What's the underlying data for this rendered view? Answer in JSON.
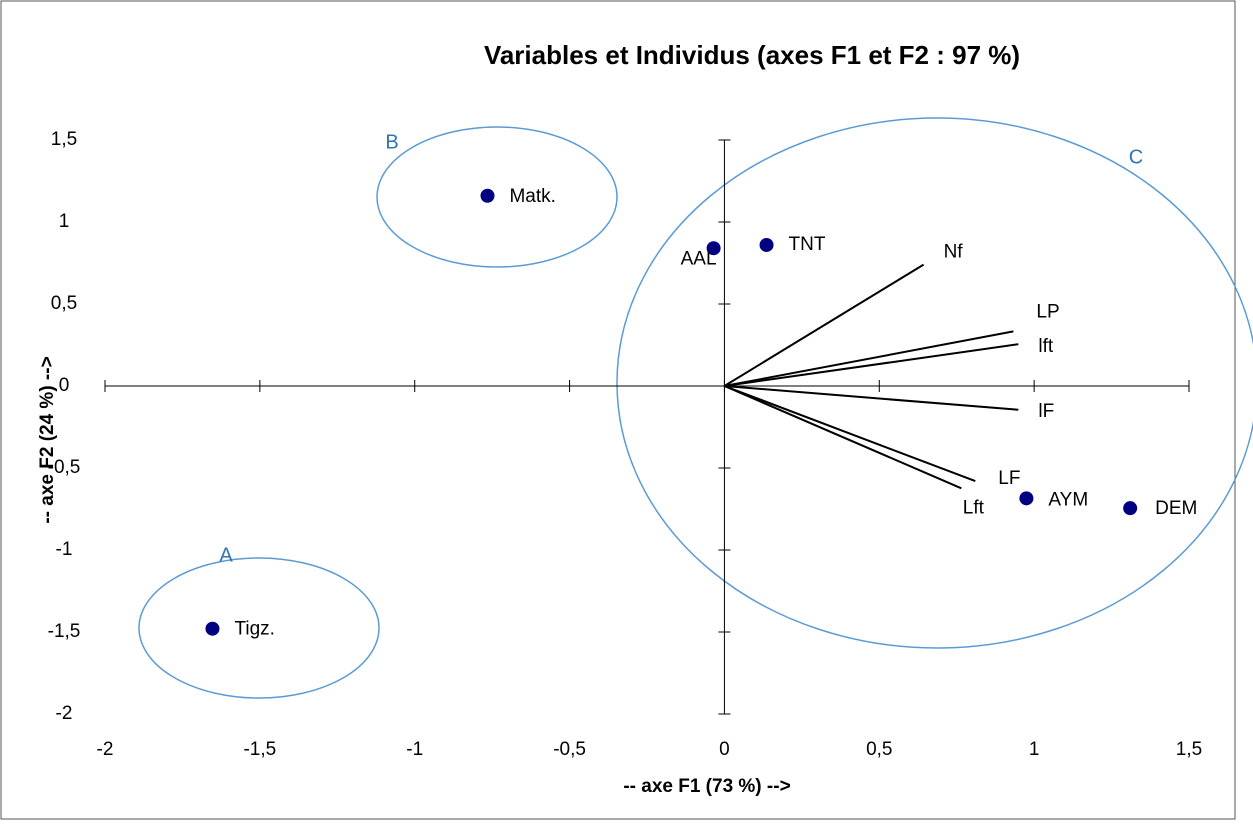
{
  "chart_data": {
    "type": "scatter",
    "title": "Variables et Individus (axes F1 et F2 : 97 %)",
    "x_label": "-- axe F1 (73 %) -->",
    "y_label": "-- axe F2 (24 %) -->",
    "xlim": [
      -2,
      1.5
    ],
    "ylim": [
      -2,
      1.5
    ],
    "xticks": [
      -2,
      {
        "value": -1.5,
        "label": "-1,5"
      },
      -1,
      {
        "value": -0.5,
        "label": "-0,5"
      },
      0,
      {
        "value": 0.5,
        "label": "0,5"
      },
      1,
      {
        "value": 1.5,
        "label": "1,5"
      }
    ],
    "yticks": [
      -2,
      {
        "value": -1.5,
        "label": "-1,5"
      },
      -1,
      {
        "value": -0.5,
        "label": "-0,5"
      },
      0,
      {
        "value": 0.5,
        "label": "0,5"
      },
      1,
      {
        "value": 1.5,
        "label": "1,5"
      }
    ],
    "individuals": {
      "color": "#000080",
      "labels": [
        "Matk.",
        "AAL",
        "TNT",
        "Tigz.",
        "AYM",
        "DEM"
      ],
      "x": [
        -0.765,
        -0.035,
        0.136,
        -1.653,
        0.975,
        1.31
      ],
      "y": [
        1.16,
        0.84,
        0.86,
        -1.48,
        -0.685,
        -0.745
      ]
    },
    "variables": {
      "color": "#000000",
      "labels": [
        "Nf",
        "LP",
        "lft",
        "lF",
        "LF",
        "Lft"
      ],
      "x": [
        0.643,
        0.933,
        0.949,
        0.949,
        0.81,
        0.765
      ],
      "y": [
        0.74,
        0.333,
        0.255,
        -0.145,
        -0.58,
        -0.624
      ]
    },
    "groups": {
      "color": "#5b9bd5",
      "labels": [
        "A",
        "B",
        "C"
      ]
    }
  }
}
